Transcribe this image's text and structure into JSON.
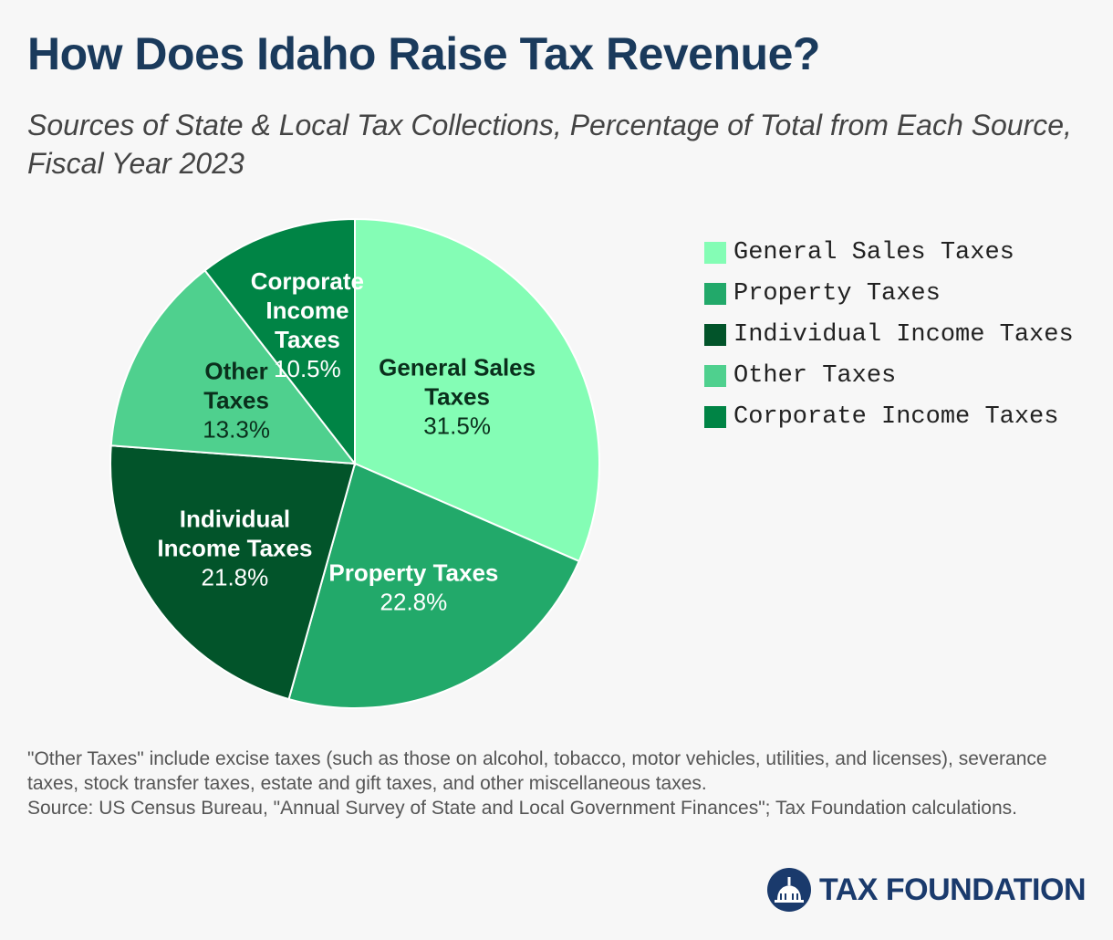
{
  "title": "How Does Idaho Raise Tax Revenue?",
  "subtitle": "Sources of State & Local Tax Collections, Percentage of Total from Each Source, Fiscal Year 2023",
  "chart_data": {
    "type": "pie",
    "categories": [
      "General Sales Taxes",
      "Property Taxes",
      "Individual Income Taxes",
      "Other Taxes",
      "Corporate Income Taxes"
    ],
    "values": [
      31.5,
      22.8,
      21.8,
      13.3,
      10.5
    ],
    "value_labels": [
      "31.5%",
      "22.8%",
      "21.8%",
      "13.3%",
      "10.5%"
    ],
    "slice_label_lines": [
      [
        "General Sales",
        "Taxes"
      ],
      [
        "Property Taxes"
      ],
      [
        "Individual",
        "Income Taxes"
      ],
      [
        "Other",
        "Taxes"
      ],
      [
        "Corporate",
        "Income",
        "Taxes"
      ]
    ],
    "colors": [
      "#84fdb5",
      "#22a96a",
      "#02542a",
      "#4fd08e",
      "#008445"
    ],
    "label_text_colors": [
      "#0a2f1c",
      "#ffffff",
      "#ffffff",
      "#0a2f1c",
      "#ffffff"
    ],
    "start_angle": "12 o'clock",
    "direction": "clockwise",
    "legend": {
      "position": "right",
      "entries": [
        "General Sales Taxes",
        "Property Taxes",
        "Individual Income Taxes",
        "Other Taxes",
        "Corporate Income Taxes"
      ]
    }
  },
  "notes": {
    "other_taxes_note": "\"Other Taxes\" include excise taxes (such as those on alcohol, tobacco, motor vehicles, utilities, and licenses), severance taxes, stock transfer taxes, estate and gift taxes, and other miscellaneous taxes.",
    "source": "Source: US Census Bureau, \"Annual Survey of State and Local Government Finances\"; Tax Foundation calculations."
  },
  "logo": {
    "text": "TAX FOUNDATION",
    "icon": "capitol-dome-icon",
    "color": "#1a3a6c"
  }
}
